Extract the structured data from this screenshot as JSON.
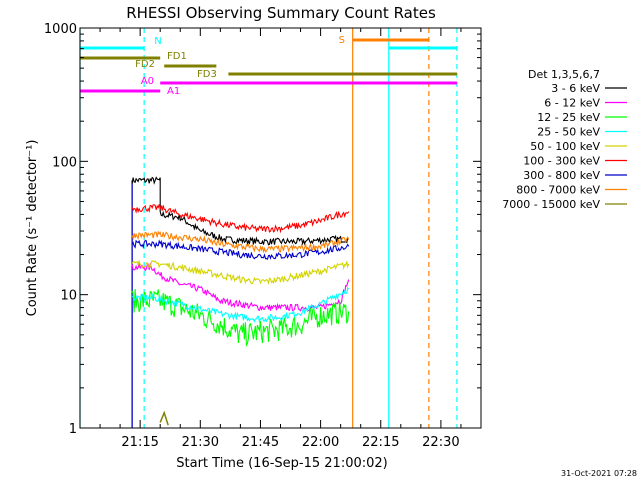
{
  "chart_data": {
    "type": "line",
    "title": "RHESSI Observing Summary Count Rates",
    "xlabel": "Start Time (16-Sep-15 21:00:02)",
    "ylabel": "Count Rate (s⁻¹ detector⁻¹)",
    "y_scale": "log",
    "ylim": [
      1,
      1000
    ],
    "y_ticks": [
      {
        "value": 1,
        "label": "1"
      },
      {
        "value": 10,
        "label": "10"
      },
      {
        "value": 100,
        "label": "100"
      },
      {
        "value": 1000,
        "label": "1000"
      }
    ],
    "xlim": [
      "21:00",
      "22:40"
    ],
    "x_ticks": [
      {
        "value": "21:15",
        "label": "21:15"
      },
      {
        "value": "21:30",
        "label": "21:30"
      },
      {
        "value": "21:45",
        "label": "21:45"
      },
      {
        "value": "22:00",
        "label": "22:00"
      },
      {
        "value": "22:15",
        "label": "22:15"
      },
      {
        "value": "22:30",
        "label": "22:30"
      }
    ],
    "legend_title": "Det 1,3,5,6,7",
    "legend_position": "right",
    "series": [
      {
        "name": "3 - 6 keV",
        "color": "#000000",
        "x": [
          "21:13",
          "21:20",
          "21:20",
          "21:25",
          "21:30",
          "21:36",
          "21:45",
          "21:55",
          "22:03",
          "22:07"
        ],
        "y": [
          72,
          72,
          40,
          38,
          30,
          26,
          25,
          25,
          26,
          26
        ]
      },
      {
        "name": "6 - 12 keV",
        "color": "#ff00ff",
        "x": [
          "21:13",
          "21:18",
          "21:20",
          "21:25",
          "21:30",
          "21:35",
          "21:45",
          "21:55",
          "22:00",
          "22:05",
          "22:07"
        ],
        "y": [
          16,
          16,
          14,
          12,
          11,
          9,
          8,
          8,
          8,
          9,
          13
        ]
      },
      {
        "name": "12 - 25 keV",
        "color": "#00ff00",
        "x": [
          "21:13",
          "21:18",
          "21:20",
          "21:25",
          "21:30",
          "21:35",
          "21:40",
          "21:50",
          "21:55",
          "22:00",
          "22:07"
        ],
        "y": [
          9,
          9,
          9,
          8,
          7,
          6,
          5,
          5.5,
          6,
          7,
          7.5
        ]
      },
      {
        "name": "25 - 50 keV",
        "color": "#00ffff",
        "x": [
          "21:13",
          "21:18",
          "21:25",
          "21:30",
          "21:35",
          "21:40",
          "21:45",
          "21:50",
          "21:55",
          "22:00",
          "22:07"
        ],
        "y": [
          9.5,
          9.5,
          8.5,
          7.8,
          7.2,
          6.8,
          6.6,
          6.8,
          7.4,
          8.5,
          11
        ]
      },
      {
        "name": "50 - 100 keV",
        "color": "#d4d400",
        "x": [
          "21:13",
          "21:20",
          "21:25",
          "21:30",
          "21:35",
          "21:40",
          "21:45",
          "21:50",
          "21:55",
          "22:00",
          "22:07"
        ],
        "y": [
          17,
          17,
          16,
          15,
          14,
          13,
          12.5,
          13,
          14,
          15,
          17
        ]
      },
      {
        "name": "100 - 300 keV",
        "color": "#ff0000",
        "x": [
          "21:13",
          "21:20",
          "21:25",
          "21:30",
          "21:35",
          "21:40",
          "21:45",
          "21:50",
          "21:55",
          "22:00",
          "22:07"
        ],
        "y": [
          44,
          45,
          40,
          37,
          34,
          32,
          31,
          31.5,
          33,
          36,
          42
        ]
      },
      {
        "name": "300 - 800 keV",
        "color": "#0000cc",
        "x": [
          "21:13",
          "21:20",
          "21:25",
          "21:30",
          "21:35",
          "21:40",
          "21:45",
          "21:50",
          "21:55",
          "22:00",
          "22:07"
        ],
        "y": [
          24,
          24,
          23,
          22,
          21,
          20,
          19.5,
          19.5,
          20,
          21,
          23
        ]
      },
      {
        "name": "800 - 7000 keV",
        "color": "#ff8000",
        "x": [
          "21:13",
          "21:20",
          "21:25",
          "21:30",
          "21:35",
          "21:40",
          "21:45",
          "21:50",
          "21:55",
          "22:00",
          "22:07"
        ],
        "y": [
          28,
          28,
          27,
          26,
          24,
          23,
          22,
          22,
          22.5,
          23,
          26
        ]
      },
      {
        "name": "7000 - 15000 keV",
        "color": "#808000",
        "x": [
          "21:20",
          "21:21",
          "21:22"
        ],
        "y": [
          1.1,
          1.3,
          1.05
        ]
      }
    ],
    "observing_flags": [
      {
        "label": "N",
        "color": "#00ffff",
        "segments": [
          [
            "21:00",
            "21:16"
          ],
          [
            "22:17",
            "22:34"
          ]
        ]
      },
      {
        "label": "FD1",
        "color": "#808000",
        "segments": [
          [
            "21:00",
            "21:20"
          ]
        ]
      },
      {
        "label": "FD2",
        "color": "#808000",
        "segments": [
          [
            "21:21",
            "21:34"
          ]
        ]
      },
      {
        "label": "FD3",
        "color": "#808000",
        "segments": [
          [
            "21:37",
            "22:34"
          ]
        ]
      },
      {
        "label": "A0",
        "color": "#ff00ff",
        "segments": [
          [
            "21:20",
            "22:34"
          ]
        ]
      },
      {
        "label": "A1",
        "color": "#ff00ff",
        "segments": [
          [
            "21:00",
            "21:20"
          ]
        ]
      },
      {
        "label": "S",
        "color": "#ff8000",
        "segments": [
          [
            "22:08",
            "22:27"
          ]
        ]
      }
    ],
    "vertical_markers": [
      {
        "x": "21:00",
        "color": "#00ffff",
        "style": "solid"
      },
      {
        "x": "21:16",
        "color": "#00ffff",
        "style": "dashed"
      },
      {
        "x": "22:08",
        "color": "#ff8000",
        "style": "solid"
      },
      {
        "x": "22:17",
        "color": "#00ffff",
        "style": "solid"
      },
      {
        "x": "22:27",
        "color": "#ff8000",
        "style": "dashed"
      },
      {
        "x": "22:34",
        "color": "#00ffff",
        "style": "dashed"
      }
    ],
    "grid": false
  },
  "footer": {
    "timestamp": "31-Oct-2021 07:28"
  }
}
